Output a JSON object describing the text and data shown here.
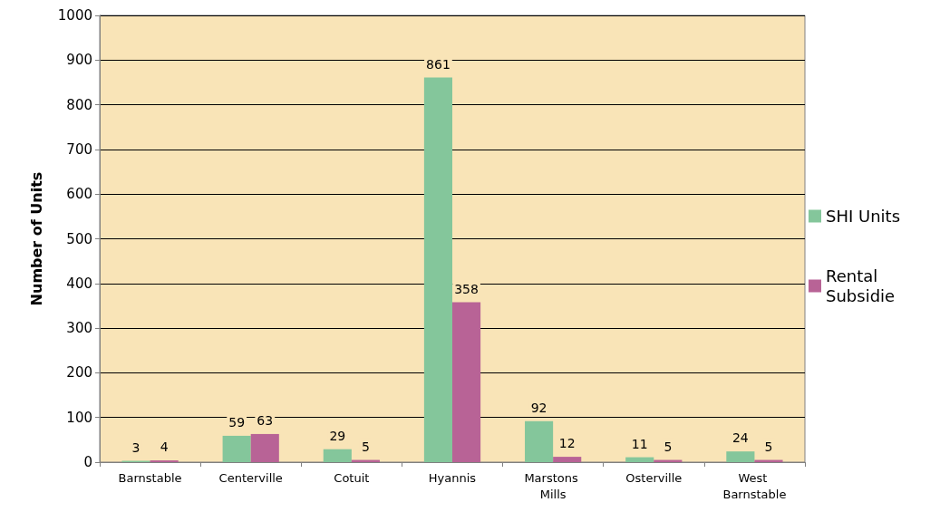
{
  "chart_data": {
    "type": "bar",
    "ylabel": "Number of Units",
    "categories": [
      "Barnstable",
      "Centerville",
      "Cotuit",
      "Hyannis",
      "Marstons Mills",
      "Osterville",
      "West Barnstable"
    ],
    "series": [
      {
        "name": "SHI Units",
        "color": "#84c69b",
        "values": [
          3,
          59,
          29,
          861,
          92,
          11,
          24
        ]
      },
      {
        "name": "Rental Subsidie",
        "color": "#b86396",
        "values": [
          4,
          63,
          5,
          358,
          12,
          5,
          5
        ]
      }
    ],
    "ylim": [
      0,
      1000
    ],
    "yticks": [
      0,
      100,
      200,
      300,
      400,
      500,
      600,
      700,
      800,
      900,
      1000
    ],
    "grid": "y",
    "legend": "right",
    "data_labels": true
  }
}
